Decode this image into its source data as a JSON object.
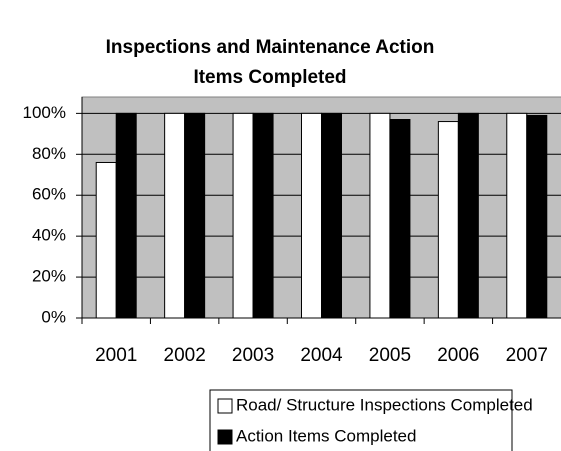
{
  "chart_data": {
    "type": "bar",
    "title": "Inspections and Maintenance Action Items Completed",
    "categories": [
      "2001",
      "2002",
      "2003",
      "2004",
      "2005",
      "2006",
      "2007"
    ],
    "series": [
      {
        "name": "Road/ Structure Inspections Completed",
        "color": "#ffffff",
        "values": [
          76,
          100,
          100,
          100,
          100,
          96,
          100
        ]
      },
      {
        "name": "Action Items Completed",
        "color": "#000000",
        "values": [
          100,
          100,
          100,
          100,
          97,
          100,
          99
        ]
      }
    ],
    "ylim": [
      0,
      108
    ],
    "yticks": [
      {
        "value": 0,
        "label": "0%"
      },
      {
        "value": 20,
        "label": "20%"
      },
      {
        "value": 40,
        "label": "40%"
      },
      {
        "value": 60,
        "label": "60%"
      },
      {
        "value": 80,
        "label": "80%"
      },
      {
        "value": 100,
        "label": "100%"
      }
    ],
    "grid": true,
    "plot_background": "#c0c0c0",
    "legend": "bottom"
  }
}
